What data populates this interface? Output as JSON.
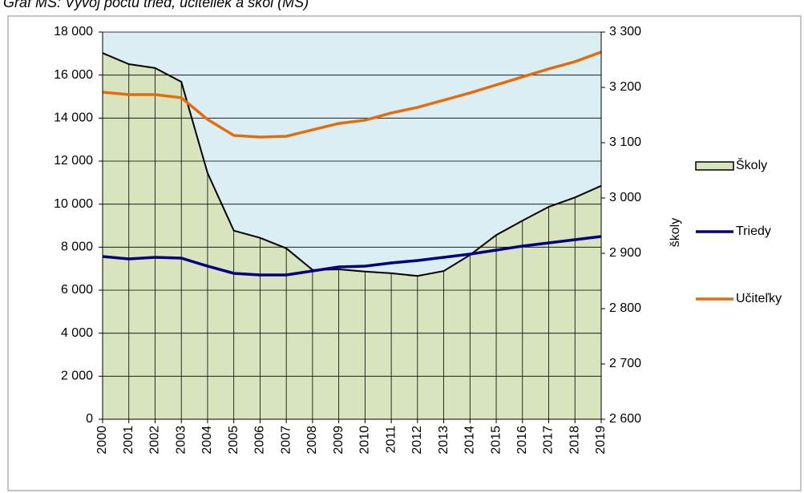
{
  "chart_data": {
    "type": "line",
    "title": "Graf MŠ: Vývoj počtu tried, učiteliek a škôl (MŠ)",
    "y2_label": "školy",
    "x": [
      2000,
      2001,
      2002,
      2003,
      2004,
      2005,
      2006,
      2007,
      2008,
      2009,
      2010,
      2011,
      2012,
      2013,
      2014,
      2015,
      2016,
      2017,
      2018,
      2019
    ],
    "xlim": [
      2000,
      2019
    ],
    "ylim": [
      0,
      18000
    ],
    "yticks": [
      {
        "value": 0,
        "label": "0"
      },
      {
        "value": 2000,
        "label": "2 000"
      },
      {
        "value": 4000,
        "label": "4 000"
      },
      {
        "value": 6000,
        "label": "6 000"
      },
      {
        "value": 8000,
        "label": "8 000"
      },
      {
        "value": 10000,
        "label": "10 000"
      },
      {
        "value": 12000,
        "label": "12 000"
      },
      {
        "value": 14000,
        "label": "14 000"
      },
      {
        "value": 16000,
        "label": "16 000"
      },
      {
        "value": 18000,
        "label": "18 000"
      }
    ],
    "y2lim": [
      2600,
      3300
    ],
    "y2ticks": [
      {
        "value": 2600,
        "label": "2 600"
      },
      {
        "value": 2700,
        "label": "2 700"
      },
      {
        "value": 2800,
        "label": "2 800"
      },
      {
        "value": 2900,
        "label": "2 900"
      },
      {
        "value": 3000,
        "label": "3 000"
      },
      {
        "value": 3100,
        "label": "3 100"
      },
      {
        "value": 3200,
        "label": "3 200"
      },
      {
        "value": 3300,
        "label": "3 300"
      }
    ],
    "grid": true,
    "legend": "right",
    "series": [
      {
        "name": "Školy",
        "type": "area",
        "axis": "y2",
        "color": "#d7e4bd",
        "values": [
          3262,
          3242,
          3235,
          3210,
          3045,
          2941,
          2928,
          2909,
          2870,
          2871,
          2867,
          2864,
          2859,
          2868,
          2897,
          2933,
          2959,
          2984,
          3001,
          3022
        ]
      },
      {
        "name": "Triedy",
        "type": "line",
        "color": "#000080",
        "values": [
          7566,
          7454,
          7529,
          7491,
          7119,
          6783,
          6709,
          6709,
          6895,
          7082,
          7119,
          7268,
          7380,
          7529,
          7678,
          7864,
          8051,
          8200,
          8349,
          8498
        ]
      },
      {
        "name": "Učiteľky",
        "type": "line",
        "color": "#e46c0a",
        "values": [
          15207,
          15095,
          15095,
          14946,
          13940,
          13194,
          13120,
          13157,
          13455,
          13753,
          13902,
          14238,
          14499,
          14834,
          15170,
          15542,
          15915,
          16288,
          16623,
          17070
        ]
      }
    ]
  }
}
